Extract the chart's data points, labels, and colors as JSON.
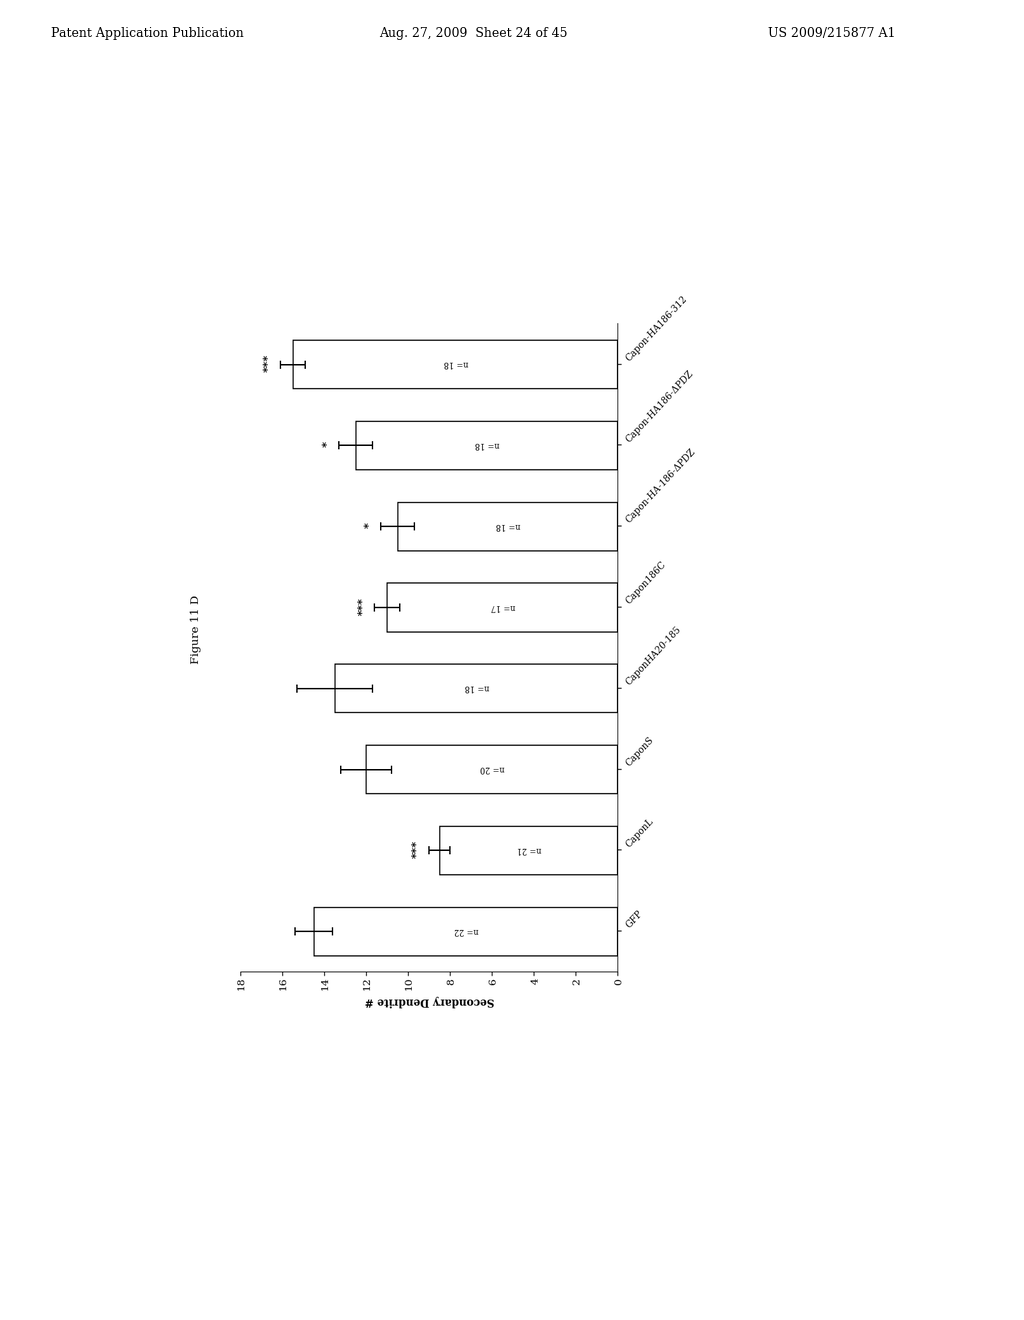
{
  "categories": [
    "GFP",
    "CaponL",
    "CaponS",
    "CaponHA20-185",
    "Capon186C",
    "Capon-HA-186-ΔPDZ",
    "Capon-HA186-ΔPDZ",
    "Capon-HA186-312"
  ],
  "values": [
    14.5,
    8.5,
    12.0,
    13.5,
    11.0,
    10.5,
    12.5,
    15.5
  ],
  "errors": [
    0.9,
    0.5,
    1.2,
    1.8,
    0.6,
    0.8,
    0.8,
    0.6
  ],
  "n_values": [
    22,
    21,
    20,
    18,
    17,
    18,
    18,
    18
  ],
  "significance": [
    "",
    "***",
    "",
    "",
    "***",
    "*",
    "*",
    "***"
  ],
  "ylabel": "Secondary Dendrite #",
  "figure_label": "Figure 11 D",
  "ylim": [
    0,
    18
  ],
  "yticks": [
    0,
    2,
    4,
    6,
    8,
    10,
    12,
    14,
    16,
    18
  ],
  "bar_color": "#ffffff",
  "bar_edgecolor": "#000000",
  "background_color": "#ffffff",
  "header_left": "Patent Application Publication",
  "header_mid": "Aug. 27, 2009  Sheet 24 of 45",
  "header_right": "US 2009/215877 A1"
}
